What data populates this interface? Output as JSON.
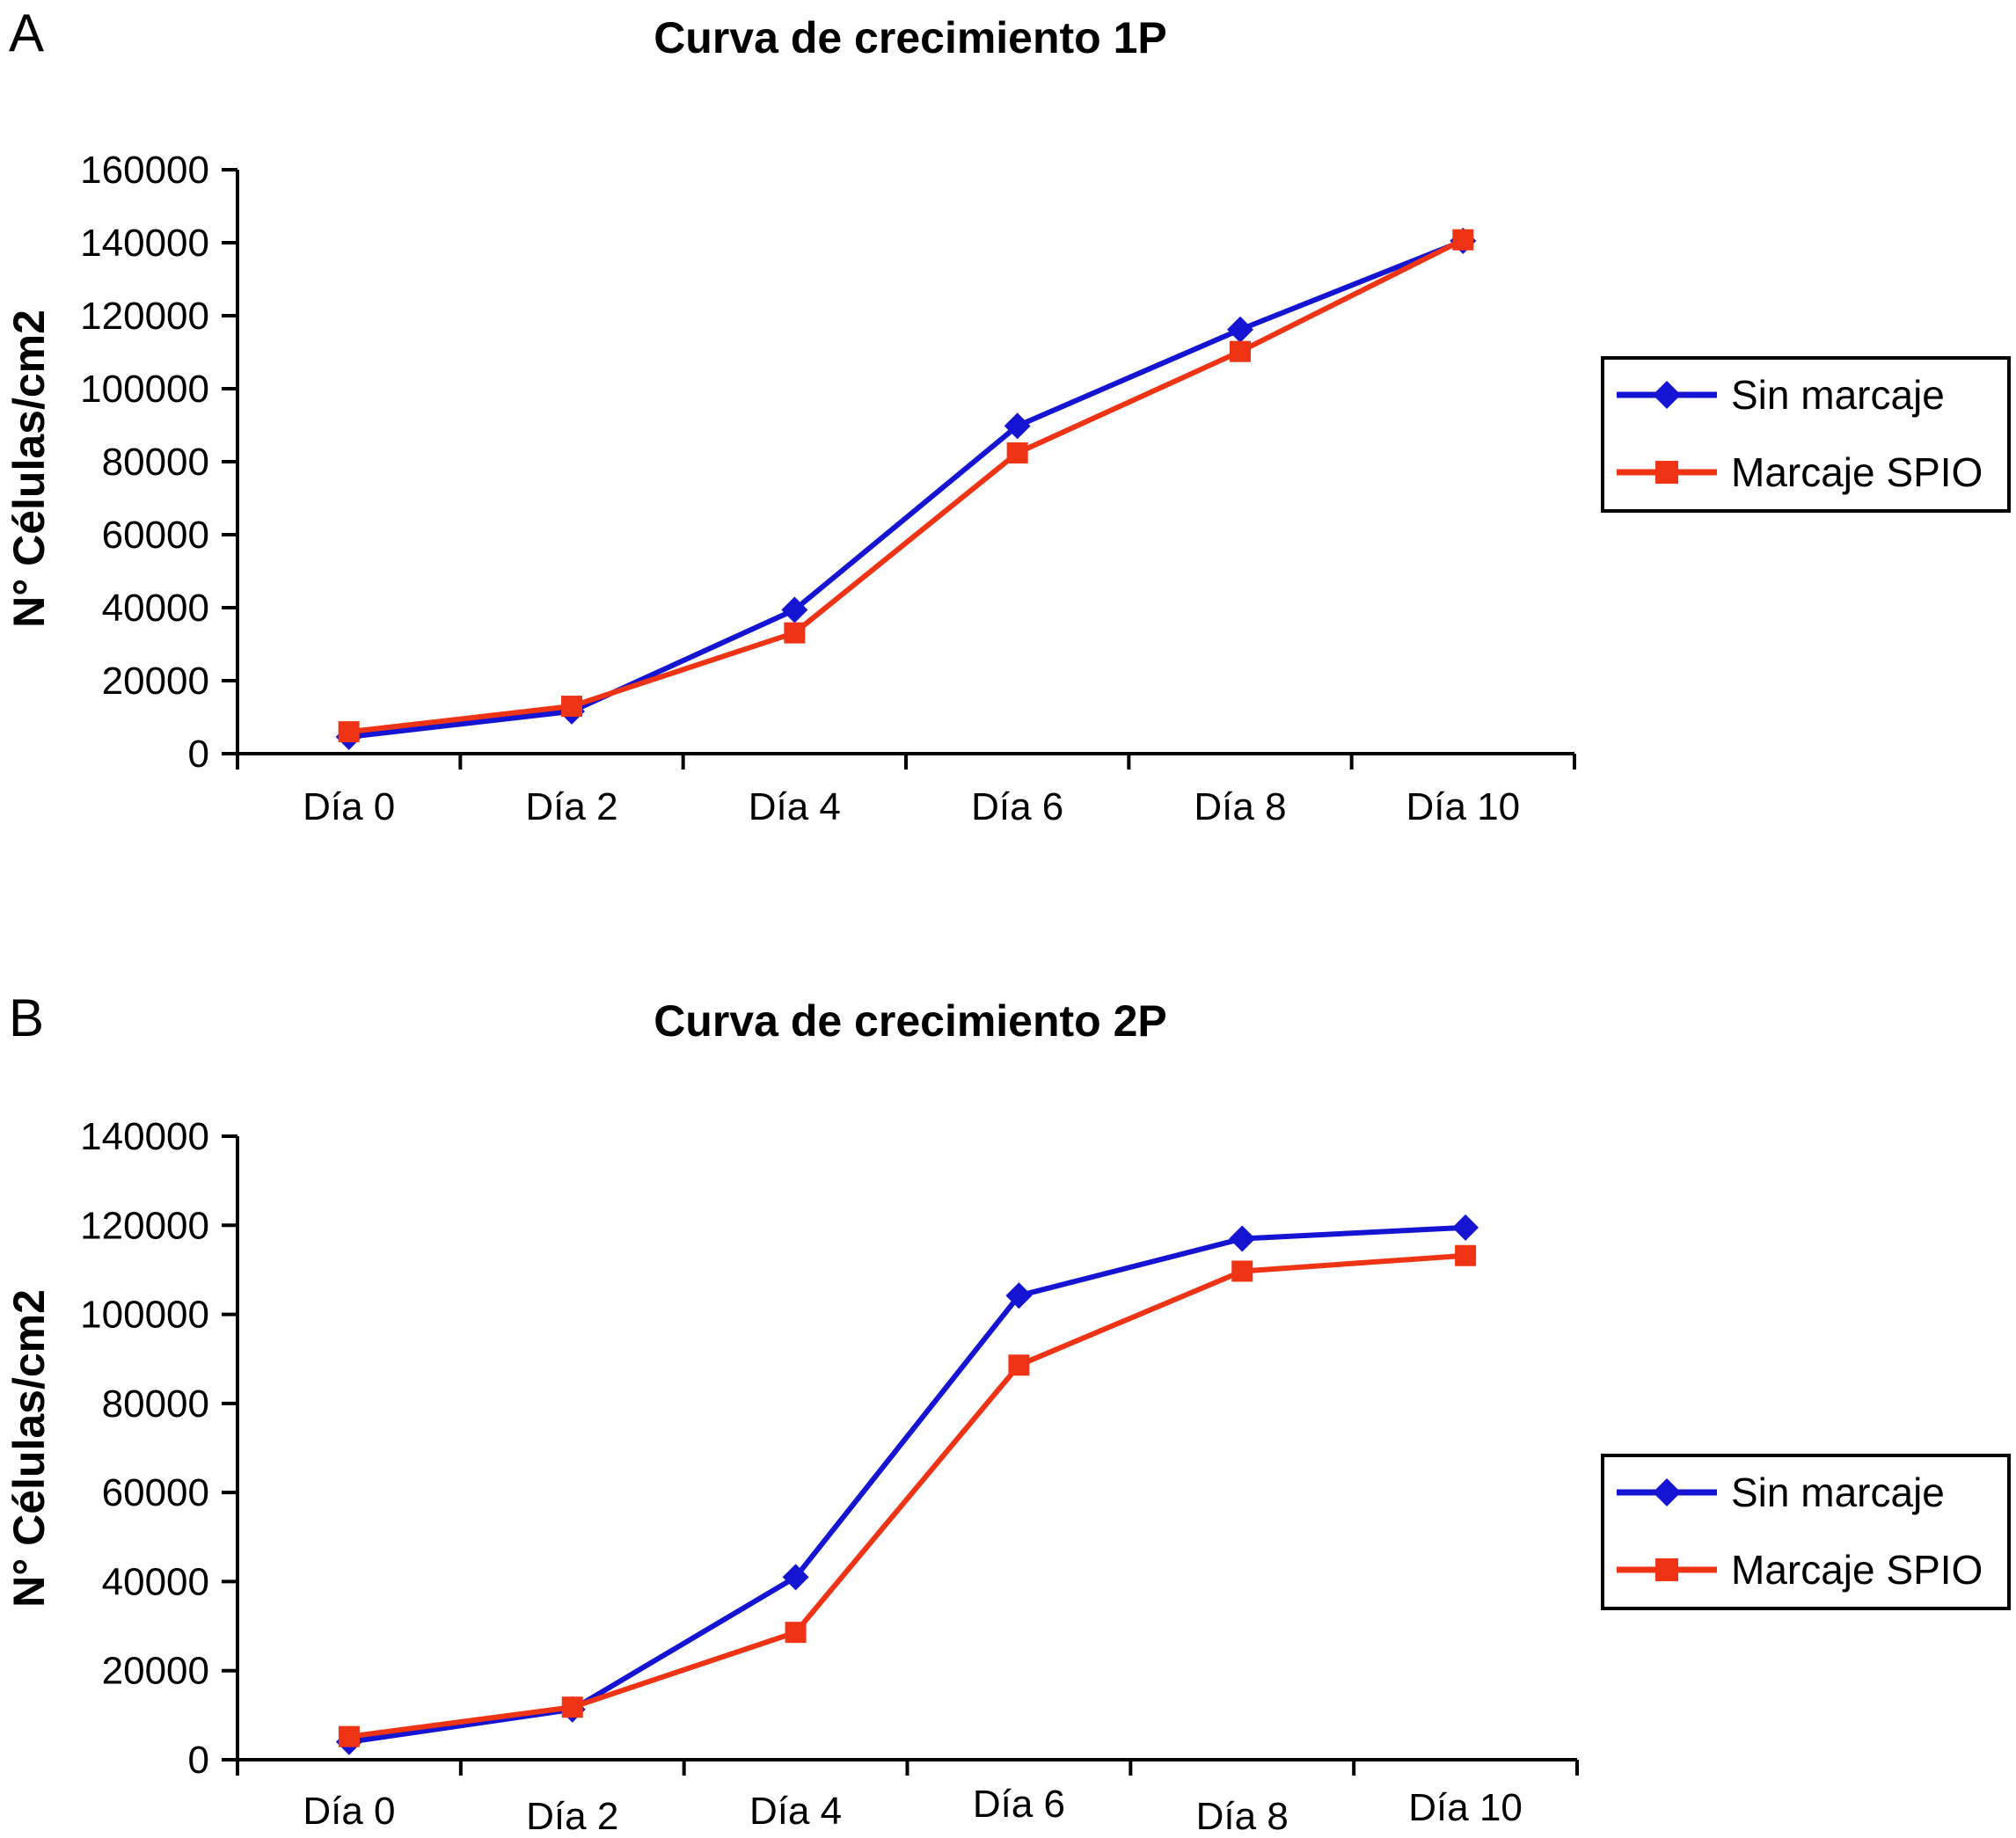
{
  "chart_data": [
    {
      "type": "line",
      "panel_label": "A",
      "title": "Curva de crecimiento 1P",
      "xlabel": "",
      "ylabel": "N° Células/cm2",
      "categories": [
        "Día 0",
        "Día 2",
        "Día 4",
        "Día 6",
        "Día 8",
        "Día 10"
      ],
      "ylim": [
        0,
        160000
      ],
      "yticks": [
        "0",
        "20000",
        "40000",
        "60000",
        "80000",
        "100000",
        "120000",
        "140000",
        "160000"
      ],
      "ytick_values": [
        0,
        20000,
        40000,
        60000,
        80000,
        100000,
        120000,
        140000,
        160000
      ],
      "grid": false,
      "legend_position": "right",
      "series": [
        {
          "name": "Sin marcaje",
          "marker": "diamond",
          "color": "#1414d2",
          "values": [
            4600,
            11600,
            39400,
            89800,
            116200,
            140500
          ]
        },
        {
          "name": "Marcaje SPIO",
          "marker": "square",
          "color": "#ee3414",
          "values": [
            6000,
            13000,
            33100,
            82400,
            110200,
            140800
          ]
        }
      ]
    },
    {
      "type": "line",
      "panel_label": "B",
      "title": "Curva de crecimiento 2P",
      "xlabel": "",
      "ylabel": "N° Células/cm2",
      "categories": [
        "Día 0",
        "Día 2",
        "Día 4",
        "Día 6",
        "Día 8",
        "Día 10"
      ],
      "ylim": [
        0,
        140000
      ],
      "yticks": [
        "0",
        "20000",
        "40000",
        "60000",
        "80000",
        "100000",
        "120000",
        "140000"
      ],
      "ytick_values": [
        0,
        20000,
        40000,
        60000,
        80000,
        100000,
        120000,
        140000
      ],
      "grid": false,
      "legend_position": "right",
      "series": [
        {
          "name": "Sin marcaje",
          "marker": "diamond",
          "color": "#1414d2",
          "values": [
            4000,
            11300,
            41000,
            104200,
            117000,
            119500
          ]
        },
        {
          "name": "Marcaje SPIO",
          "marker": "square",
          "color": "#ee3414",
          "values": [
            5200,
            11800,
            28600,
            88600,
            109700,
            113200
          ]
        }
      ]
    }
  ]
}
